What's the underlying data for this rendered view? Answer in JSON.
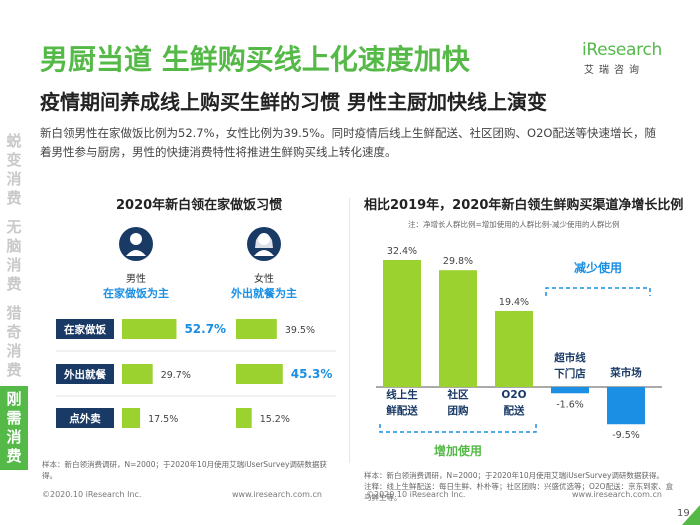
{
  "header": {
    "title": "男厨当道 生鲜购买线上化速度加快",
    "subtitle": "疫情期间养成线上购买生鲜的习惯 男性主厨加快线上演变",
    "intro": "新白领男性在家做饭比例为52.7%，女性比例为39.5%。同时疫情后线上生鲜配送、社区团购、O2O配送等快速增长，随着男性参与厨房，男性的快捷消费特性将推进生鲜购买线上转化速度。"
  },
  "logo": {
    "text": "iResearch",
    "sub": "艾瑞咨询"
  },
  "side_nav": [
    {
      "label": "蜕变消费",
      "active": false
    },
    {
      "label": "无脑消费",
      "active": false
    },
    {
      "label": "猎奇消费",
      "active": false
    },
    {
      "label": "刚需消费",
      "active": true
    }
  ],
  "colors": {
    "accent": "#55b948",
    "bar_green": "#9bd22f",
    "bar_blue": "#1a8fe3",
    "cat_box": "#1a3a66",
    "highlight_text": "#1a8fe3"
  },
  "chart_data": [
    {
      "type": "bar",
      "orientation": "horizontal",
      "title": "2020年新白领在家做饭习惯",
      "categories": [
        "在家做饭",
        "外出就餐",
        "点外卖"
      ],
      "series": [
        {
          "name": "男性",
          "caption": "在家做饭为主",
          "icon": "male-user-icon",
          "values": [
            52.7,
            29.7,
            17.5
          ]
        },
        {
          "name": "女性",
          "caption": "外出就餐为主",
          "icon": "female-user-icon",
          "values": [
            39.5,
            45.3,
            15.2
          ]
        }
      ],
      "unit": "%",
      "xlim": [
        0,
        60
      ],
      "highlighted": [
        "男性:在家做饭",
        "女性:外出就餐"
      ]
    },
    {
      "type": "bar",
      "orientation": "vertical",
      "title": "相比2019年，2020年新白领生鲜购买渠道净增长比例",
      "note": "注：净增长人群比例=增加使用的人群比例-减少使用的人群比例",
      "categories": [
        "线上生鲜配送",
        "社区团购",
        "O2O配送",
        "超市线下门店",
        "菜市场"
      ],
      "values": [
        32.4,
        29.8,
        19.4,
        -1.6,
        -9.5
      ],
      "value_labels": [
        "32.4%",
        "29.8%",
        "19.4%",
        "-1.6%",
        "-9.5%"
      ],
      "unit": "%",
      "ylim": [
        -10,
        35
      ],
      "group_labels": [
        {
          "label": "增加使用",
          "categories": [
            "线上生鲜配送",
            "社区团购",
            "O2O配送"
          ]
        },
        {
          "label": "减少使用",
          "categories": [
            "超市线下门店",
            "菜市场"
          ]
        }
      ]
    }
  ],
  "left_sample": "样本：新白领消费调研，N=2000；于2020年10月使用艾瑞iUserSurvey调研数据获得。",
  "right_sample_lines": [
    "样本：新白领消费调研，N=2000；于2020年10月使用艾瑞iUserSurvey调研数据获得。",
    "注释：线上生鲜配送：每日生鲜、朴朴等；社区团购：兴盛优选等；O2O配送：京东到家、盒马鲜生等。"
  ],
  "footer": {
    "copyright_left": "©2020.10 iResearch Inc.",
    "url_left": "www.iresearch.com.cn",
    "copyright_right": "©2020.10 iResearch Inc.",
    "url_right": "www.iresearch.com.cn",
    "page_number": "19"
  }
}
